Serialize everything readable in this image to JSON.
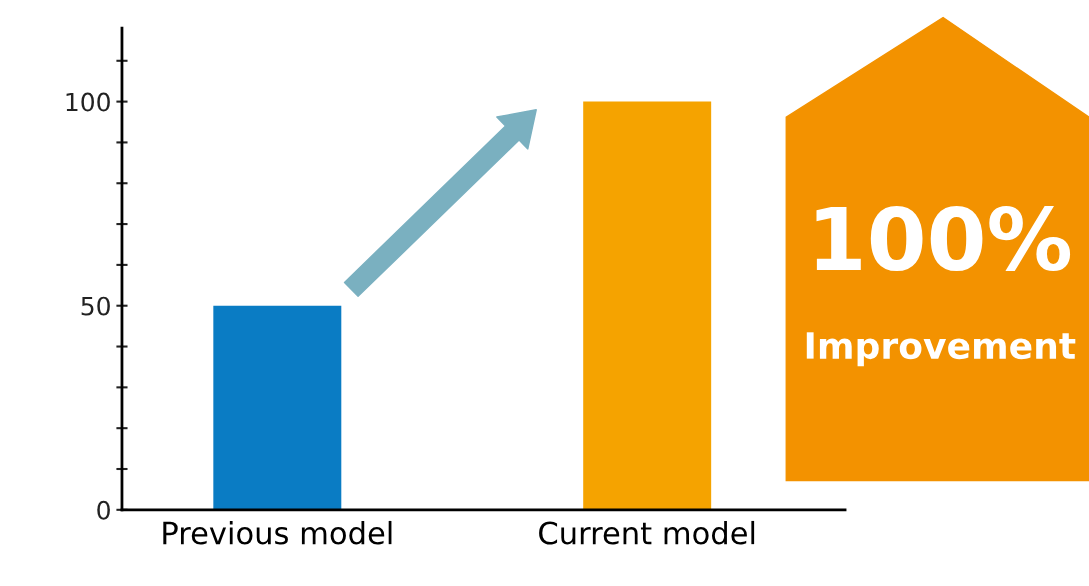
{
  "chart_data": {
    "type": "bar",
    "categories": [
      "Previous model",
      "Current model"
    ],
    "values": [
      50,
      100
    ],
    "colors": [
      "#0a7cc4",
      "#f5a300"
    ],
    "ylim": [
      0,
      118
    ],
    "yticks": [
      0,
      {
        "value": 10,
        "label": null
      },
      {
        "value": 20,
        "label": null
      },
      {
        "value": 30,
        "label": null
      },
      {
        "value": 40,
        "label": null
      },
      50,
      {
        "value": 60,
        "label": null
      },
      {
        "value": 70,
        "label": null
      },
      {
        "value": 80,
        "label": null
      },
      {
        "value": 90,
        "label": null
      },
      100,
      {
        "value": 110,
        "label": null
      }
    ],
    "grid": false,
    "annotations": [
      "100%",
      "Improvement"
    ]
  }
}
